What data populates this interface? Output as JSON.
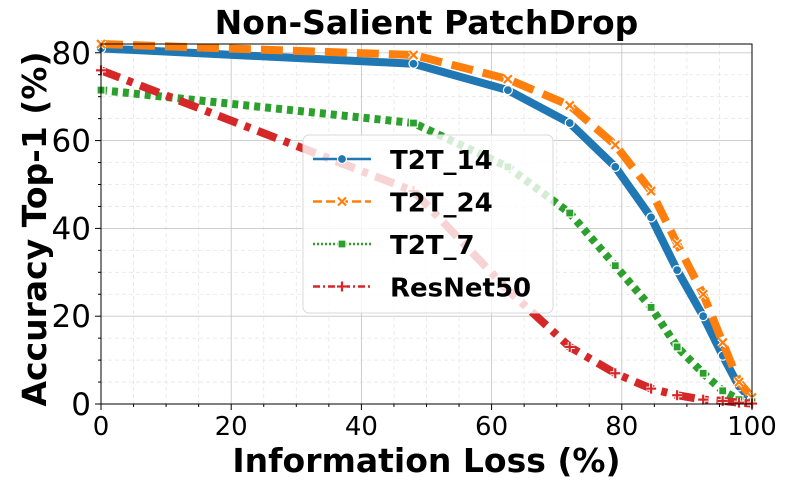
{
  "chart_data": {
    "type": "line",
    "title": "Non-Salient PatchDrop",
    "xlabel": "Information Loss (%)",
    "ylabel": "Accuracy Top-1 (%)",
    "xlim": [
      0,
      100
    ],
    "ylim": [
      0,
      82
    ],
    "xticks": [
      0,
      20,
      40,
      60,
      80,
      100
    ],
    "yticks": [
      0,
      20,
      40,
      60,
      80
    ],
    "grid": true,
    "legend_position": "center",
    "series": [
      {
        "name": "T2T_14",
        "color": "#1f77b4",
        "line_style": "solid",
        "marker": "circle",
        "x": [
          0,
          48,
          62.5,
          72,
          79,
          84.5,
          88.5,
          92.5,
          95.5,
          98,
          100
        ],
        "y": [
          81,
          77.5,
          71.5,
          64,
          54,
          42.5,
          30.5,
          20,
          11,
          4,
          1
        ]
      },
      {
        "name": "T2T_24",
        "color": "#ff7f0e",
        "line_style": "dashed",
        "marker": "x",
        "x": [
          0,
          48,
          62.5,
          72,
          79,
          84.5,
          88.5,
          92.5,
          95.5,
          98,
          100
        ],
        "y": [
          82,
          79.5,
          74,
          68,
          59,
          48.5,
          36.5,
          25,
          14,
          5,
          1.5
        ]
      },
      {
        "name": "T2T_7",
        "color": "#2ca02c",
        "line_style": "dotted",
        "marker": "square",
        "x": [
          0,
          48,
          62.5,
          72,
          79,
          84.5,
          88.5,
          92.5,
          95.5,
          98,
          100
        ],
        "y": [
          71.5,
          64,
          54,
          43.5,
          31.5,
          22,
          13,
          7,
          3,
          1,
          0.5
        ]
      },
      {
        "name": "ResNet50",
        "color": "#d62728",
        "line_style": "dashdot",
        "marker": "plus",
        "x": [
          0,
          48,
          62.5,
          72,
          79,
          84.5,
          88.5,
          92.5,
          95.5,
          98,
          100
        ],
        "y": [
          76,
          48.5,
          26,
          13,
          7,
          3.5,
          2,
          1,
          0.7,
          0.3,
          0.1
        ]
      }
    ]
  }
}
